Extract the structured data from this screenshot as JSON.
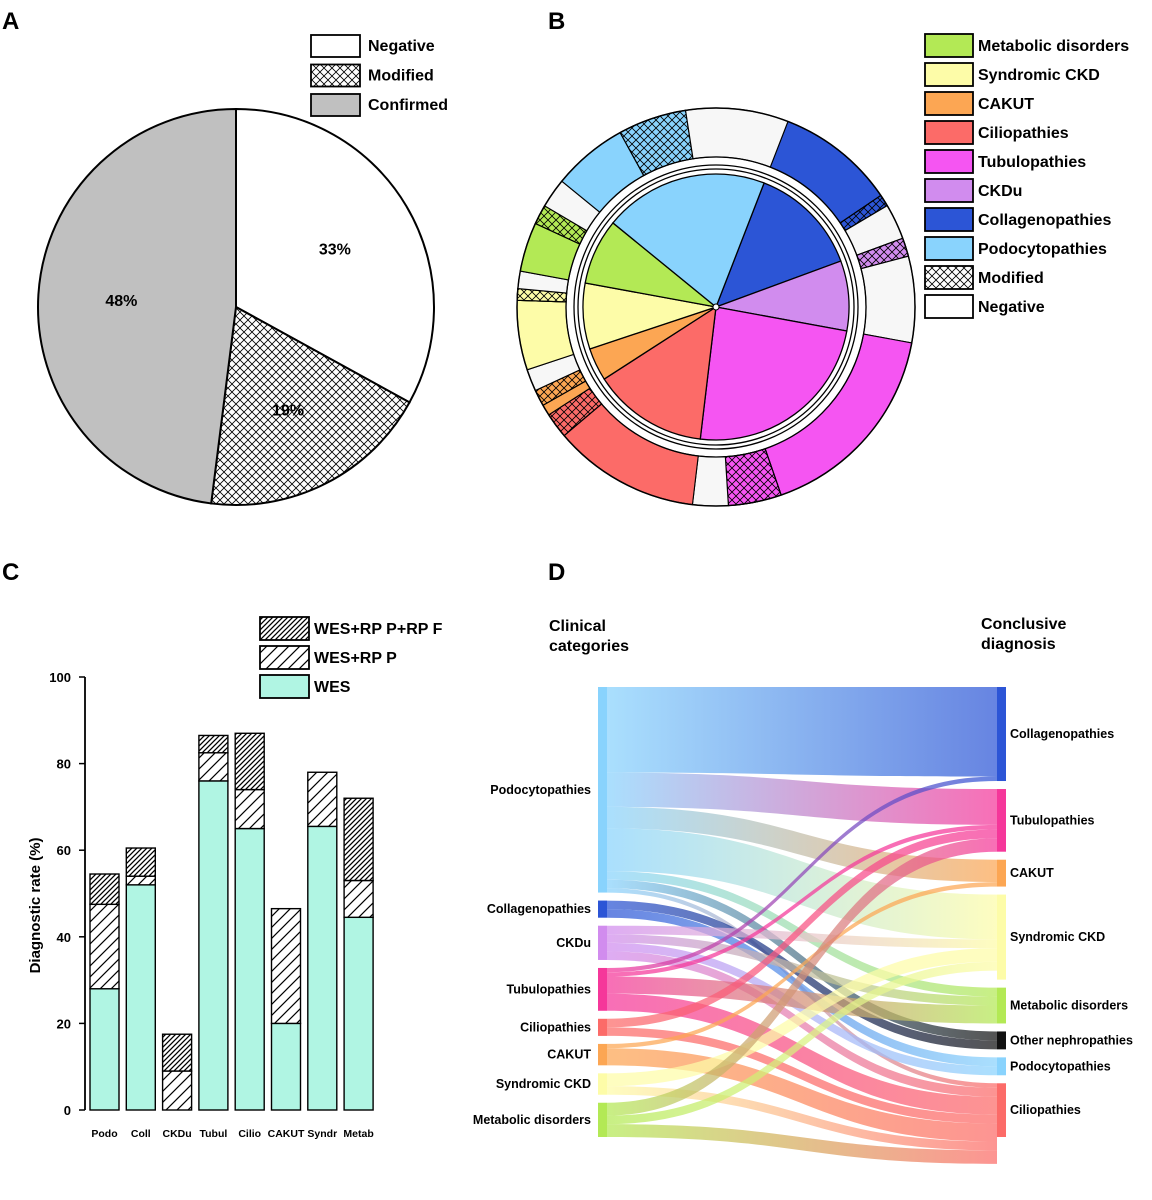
{
  "panels": {
    "a": "A",
    "b": "B",
    "c": "C",
    "d": "D"
  },
  "colors": {
    "negative": "#ffffff",
    "modified_hatch": "#000000",
    "confirmed": "#c0c0c0",
    "wes": "#b0f5e3",
    "metabolic": "#b3e955",
    "syndromic": "#fdfca8",
    "cakut": "#fca653",
    "cilio": "#fc6b68",
    "tubulo": "#f555f2",
    "ckdu": "#d18cee",
    "collageno": "#2c55d6",
    "podocyto": "#89d3fd",
    "neg_seg": "#f7f7f7"
  },
  "chart_data": [
    {
      "id": "A",
      "type": "pie",
      "legend": [
        "Negative",
        "Modified",
        "Confirmed"
      ],
      "legend_placement": "top-right",
      "slices": [
        {
          "label": "Negative",
          "value": 33,
          "pct_label": "33%",
          "pattern": "none"
        },
        {
          "label": "Modified",
          "value": 19,
          "pct_label": "19%",
          "pattern": "crosshatch"
        },
        {
          "label": "Confirmed",
          "value": 48,
          "pct_label": "48%",
          "pattern": "none"
        }
      ]
    },
    {
      "id": "B",
      "type": "pie",
      "subtype": "nested-donut",
      "legend": [
        "Metabolic disorders",
        "Syndromic CKD",
        "CAKUT",
        "Ciliopathies",
        "Tubulopathies",
        "CKDu",
        "Collagenopathies",
        "Podocytopathies",
        "Modified",
        "Negative"
      ],
      "legend_placement": "top-right",
      "inner": [
        {
          "label": "Collagenopathies",
          "value": 13.5,
          "key": "collageno"
        },
        {
          "label": "CKDu",
          "value": 8.5,
          "key": "ckdu"
        },
        {
          "label": "Tubulopathies",
          "value": 24,
          "key": "tubulo"
        },
        {
          "label": "Ciliopathies",
          "value": 14,
          "key": "cilio"
        },
        {
          "label": "CAKUT",
          "value": 4,
          "key": "cakut"
        },
        {
          "label": "Syndromic CKD",
          "value": 8,
          "key": "syndromic"
        },
        {
          "label": "Metabolic disorders",
          "value": 8,
          "key": "metabolic"
        },
        {
          "label": "Podocytopathies",
          "value": 20,
          "key": "podocyto"
        }
      ],
      "outer": [
        {
          "label": "Collagenopathies",
          "confirmed": 10,
          "modified": 1,
          "negative": 3
        },
        {
          "label": "CKDu",
          "confirmed": 0,
          "modified": 1.5,
          "negative": 7
        },
        {
          "label": "Tubulopathies",
          "confirmed": 17.5,
          "modified": 4.5,
          "negative": 3
        },
        {
          "label": "Ciliopathies",
          "confirmed": 11.5,
          "modified": 2,
          "negative": 0
        },
        {
          "label": "CAKUT",
          "confirmed": 1,
          "modified": 1.5,
          "negative": 2
        },
        {
          "label": "Syndromic CKD",
          "confirmed": 6,
          "modified": 1,
          "negative": 1.5
        },
        {
          "label": "Metabolic disorders",
          "confirmed": 5,
          "modified": 2,
          "negative": 3
        },
        {
          "label": "Podocytopathies",
          "confirmed": 11,
          "modified": 10,
          "negative": 15
        }
      ]
    },
    {
      "id": "C",
      "type": "bar",
      "subtype": "stacked",
      "categories": [
        "Podo",
        "Coll",
        "CKDu",
        "Tubul",
        "Cilio",
        "CAKUT",
        "Syndr",
        "Metab"
      ],
      "series": [
        {
          "name": "WES",
          "values": [
            28,
            52,
            0,
            76,
            65,
            20,
            65.5,
            44.5
          ],
          "pattern": "solid"
        },
        {
          "name": "WES+RP P",
          "values": [
            19.5,
            2,
            9,
            6.5,
            9,
            26.5,
            12.5,
            8.5
          ],
          "pattern": "hatch"
        },
        {
          "name": "WES+RP P+RP F",
          "values": [
            7,
            6.5,
            8.5,
            4,
            13,
            0,
            0,
            19
          ],
          "pattern": "dense-hatch"
        }
      ],
      "legend_order": [
        "WES+RP P+RP F",
        "WES+RP P",
        "WES"
      ],
      "legend_placement": "top-right",
      "ylabel": "Diagnostic rate (%)",
      "ylim": [
        0,
        100
      ],
      "yticks": [
        0,
        20,
        40,
        60,
        80,
        100
      ],
      "grid": false
    },
    {
      "id": "D",
      "type": "sankey",
      "left_header": [
        "Clinical",
        "categories"
      ],
      "right_header": [
        "Conclusive",
        "diagnosis"
      ],
      "left_nodes": [
        {
          "label": "Podocytopathies",
          "value": 48,
          "color": "#89d3fd"
        },
        {
          "label": "Collagenopathies",
          "value": 4,
          "color": "#2c55d6"
        },
        {
          "label": "CKDu",
          "value": 8,
          "color": "#d18cee"
        },
        {
          "label": "Tubulopathies",
          "value": 10,
          "color": "#f5379a"
        },
        {
          "label": "Ciliopathies",
          "value": 4,
          "color": "#fc6b68"
        },
        {
          "label": "CAKUT",
          "value": 5,
          "color": "#fca653"
        },
        {
          "label": "Syndromic CKD",
          "value": 5,
          "color": "#fdfca8"
        },
        {
          "label": "Metabolic disorders",
          "value": 8,
          "color": "#b3e955"
        }
      ],
      "right_nodes": [
        {
          "label": "Collagenopathies",
          "value": 21,
          "color": "#2c55d6"
        },
        {
          "label": "Tubulopathies",
          "value": 14,
          "color": "#f5379a"
        },
        {
          "label": "CAKUT",
          "value": 6,
          "color": "#fca653"
        },
        {
          "label": "Syndromic CKD",
          "value": 19,
          "color": "#fdfca8"
        },
        {
          "label": "Metabolic disorders",
          "value": 8,
          "color": "#b3e955"
        },
        {
          "label": "Other nephropathies",
          "value": 4,
          "color": "#111111"
        },
        {
          "label": "Podocytopathies",
          "value": 4,
          "color": "#89d3fd"
        },
        {
          "label": "Ciliopathies",
          "value": 12,
          "color": "#fc6b68"
        }
      ],
      "flows": [
        {
          "from": "Podocytopathies",
          "to": "Collagenopathies",
          "value": 20
        },
        {
          "from": "Podocytopathies",
          "to": "Tubulopathies",
          "value": 8
        },
        {
          "from": "Podocytopathies",
          "to": "CAKUT",
          "value": 5
        },
        {
          "from": "Podocytopathies",
          "to": "Syndromic CKD",
          "value": 10
        },
        {
          "from": "Podocytopathies",
          "to": "Metabolic disorders",
          "value": 2
        },
        {
          "from": "Podocytopathies",
          "to": "Other nephropathies",
          "value": 2
        },
        {
          "from": "Podocytopathies",
          "to": "Ciliopathies",
          "value": 1
        },
        {
          "from": "Collagenopathies",
          "to": "Other nephropathies",
          "value": 2
        },
        {
          "from": "Collagenopathies",
          "to": "Podocytopathies",
          "value": 2
        },
        {
          "from": "CKDu",
          "to": "Syndromic CKD",
          "value": 2
        },
        {
          "from": "CKDu",
          "to": "Metabolic disorders",
          "value": 2
        },
        {
          "from": "CKDu",
          "to": "Podocytopathies",
          "value": 2
        },
        {
          "from": "CKDu",
          "to": "Ciliopathies",
          "value": 2
        },
        {
          "from": "Tubulopathies",
          "to": "Collagenopathies",
          "value": 1
        },
        {
          "from": "Tubulopathies",
          "to": "Tubulopathies",
          "value": 1
        },
        {
          "from": "Tubulopathies",
          "to": "Metabolic disorders",
          "value": 4
        },
        {
          "from": "Tubulopathies",
          "to": "Ciliopathies",
          "value": 4
        },
        {
          "from": "Ciliopathies",
          "to": "Tubulopathies",
          "value": 2
        },
        {
          "from": "Ciliopathies",
          "to": "Ciliopathies",
          "value": 2
        },
        {
          "from": "CAKUT",
          "to": "CAKUT",
          "value": 1
        },
        {
          "from": "CAKUT",
          "to": "Ciliopathies",
          "value": 4
        },
        {
          "from": "Syndromic CKD",
          "to": "Syndromic CKD",
          "value": 3
        },
        {
          "from": "Syndromic CKD",
          "to": "Ciliopathies",
          "value": 2
        },
        {
          "from": "Metabolic disorders",
          "to": "Tubulopathies",
          "value": 3
        },
        {
          "from": "Metabolic disorders",
          "to": "Syndromic CKD",
          "value": 2
        },
        {
          "from": "Metabolic disorders",
          "to": "Ciliopathies",
          "value": 3
        }
      ]
    }
  ]
}
